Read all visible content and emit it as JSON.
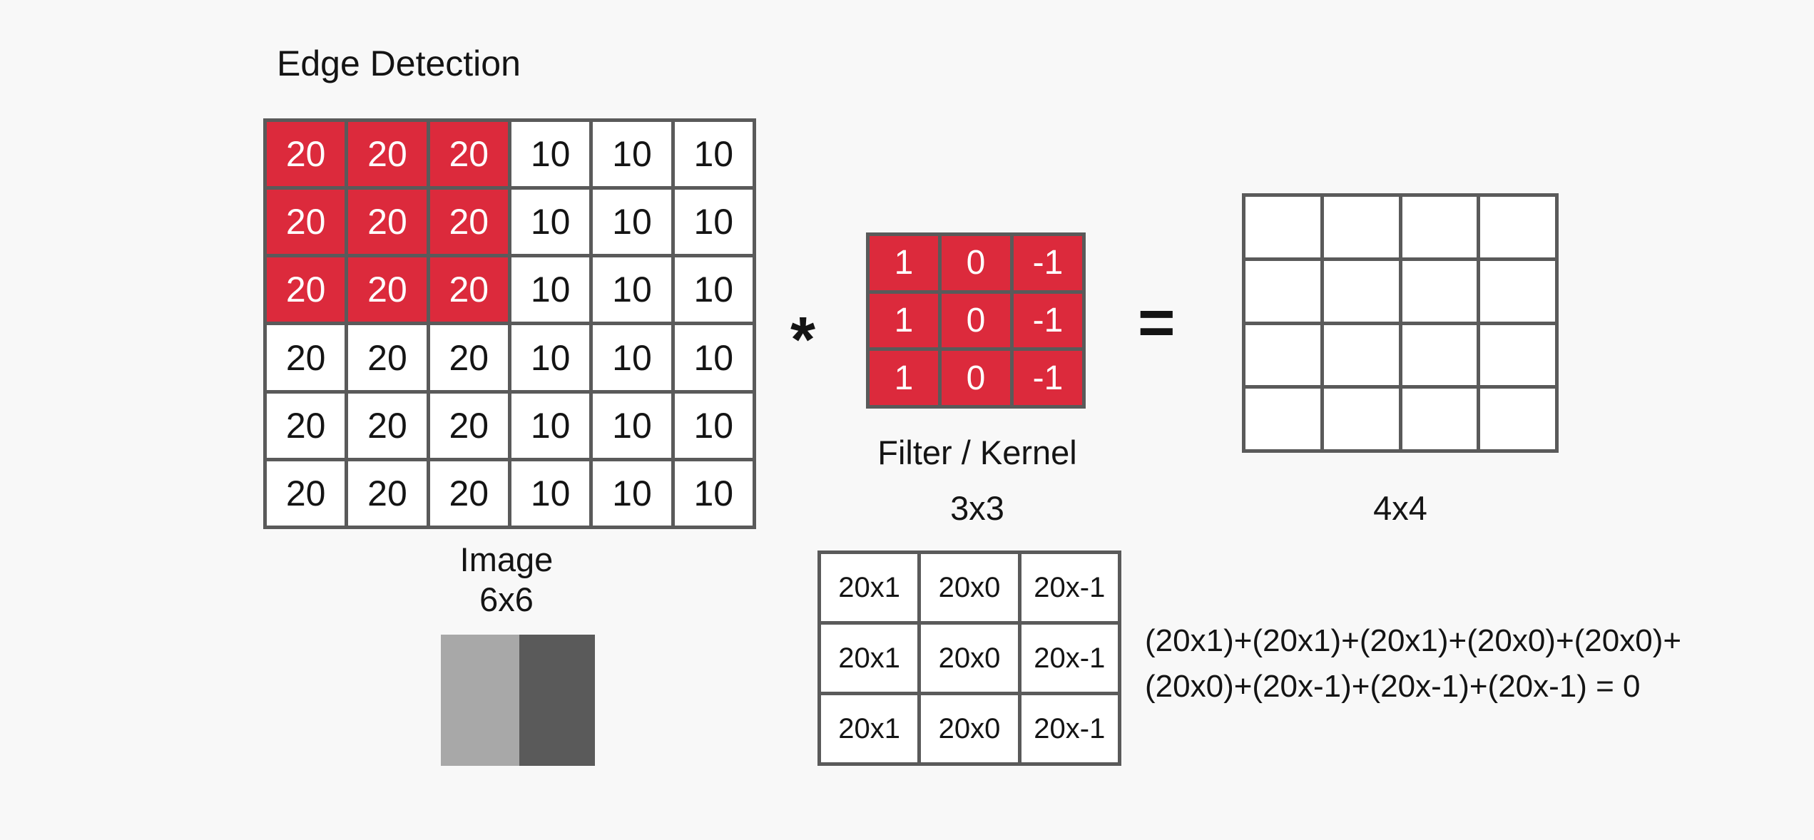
{
  "title": "Edge Detection",
  "image": {
    "label": "Image",
    "size": "6x6",
    "rows": [
      [
        "20",
        "20",
        "20",
        "10",
        "10",
        "10"
      ],
      [
        "20",
        "20",
        "20",
        "10",
        "10",
        "10"
      ],
      [
        "20",
        "20",
        "20",
        "10",
        "10",
        "10"
      ],
      [
        "20",
        "20",
        "20",
        "10",
        "10",
        "10"
      ],
      [
        "20",
        "20",
        "20",
        "10",
        "10",
        "10"
      ],
      [
        "20",
        "20",
        "20",
        "10",
        "10",
        "10"
      ]
    ],
    "highlighted_region": {
      "rows": [
        0,
        1,
        2
      ],
      "cols": [
        0,
        1,
        2
      ]
    },
    "tone_swatches": [
      "#a8a8a8",
      "#5a5a5a"
    ]
  },
  "operators": {
    "convolve": "*",
    "equals": "="
  },
  "filter": {
    "label": "Filter / Kernel",
    "size": "3x3",
    "rows": [
      [
        "1",
        "0",
        "-1"
      ],
      [
        "1",
        "0",
        "-1"
      ],
      [
        "1",
        "0",
        "-1"
      ]
    ]
  },
  "output": {
    "size": "4x4",
    "rows": [
      [
        "",
        "",
        "",
        ""
      ],
      [
        "",
        "",
        "",
        ""
      ],
      [
        "",
        "",
        "",
        ""
      ],
      [
        "",
        "",
        "",
        ""
      ]
    ]
  },
  "calculation": {
    "rows": [
      [
        "20x1",
        "20x0",
        "20x-1"
      ],
      [
        "20x1",
        "20x0",
        "20x-1"
      ],
      [
        "20x1",
        "20x0",
        "20x-1"
      ]
    ],
    "equation_lines": [
      "(20x1)+(20x1)+(20x1)+(20x0)+(20x0)+",
      "(20x0)+(20x-1)+(20x-1)+(20x-1) = 0"
    ]
  },
  "colors": {
    "highlight": "#dc2a3c",
    "grid_line": "#5a5a5a",
    "background": "#f8f8f8"
  }
}
